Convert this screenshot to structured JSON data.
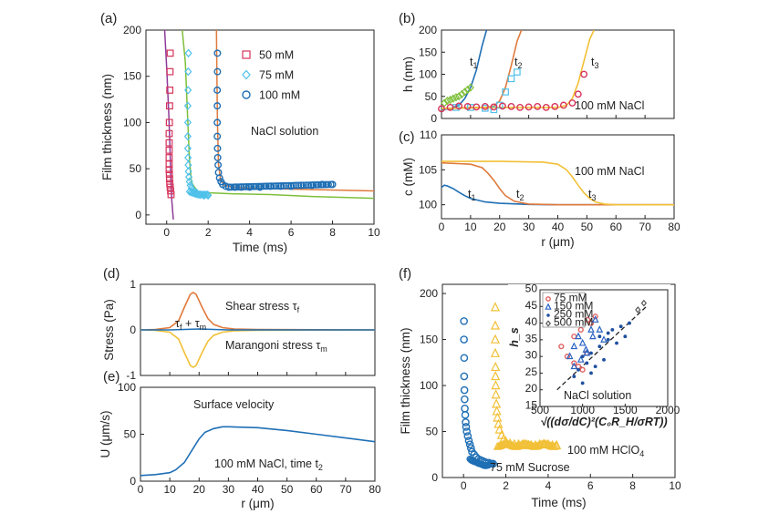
{
  "figure": {
    "panel_labels": [
      "(a)",
      "(b)",
      "(c)",
      "(d)",
      "(e)",
      "(f)"
    ]
  },
  "colors": {
    "red": "#d6335a",
    "cyan": "#4fc1ea",
    "blue": "#1f6fb5",
    "purple": "#8e3b9a",
    "green": "#7dbf3a",
    "orange": "#e07a3c",
    "yellow": "#f2c037",
    "darkblue": "#2f6fb8",
    "inset_red": "#e06060",
    "inset_blue": "#2b63c4",
    "inset_navy": "#1f4f9e",
    "inset_gray": "#555555"
  },
  "chart_data": [
    {
      "id": "a",
      "type": "scatter",
      "xlabel": "Time (ms)",
      "ylabel": "Film thickness (nm)",
      "xlim": [
        -1,
        10
      ],
      "ylim": [
        -10,
        200
      ],
      "xticks": [
        0,
        2,
        4,
        6,
        8,
        10
      ],
      "yticks": [
        0,
        50,
        100,
        150,
        200
      ],
      "annotations": [
        "NaCl solution"
      ],
      "legend": [
        "50 mM",
        "75 mM",
        "100 mM"
      ],
      "series": [
        {
          "name": "50 mM",
          "marker": "square",
          "color": "red",
          "x": [
            0.17,
            0.16,
            0.15,
            0.14,
            0.13,
            0.12,
            0.12,
            0.12,
            0.12,
            0.12,
            0.12,
            0.13,
            0.14,
            0.15,
            0.17,
            0.19,
            0.21
          ],
          "y": [
            175,
            155,
            135,
            118,
            100,
            88,
            78,
            70,
            62,
            55,
            49,
            44,
            39,
            34,
            30,
            26,
            22
          ]
        },
        {
          "name": "75 mM",
          "marker": "diamond",
          "color": "cyan",
          "x": [
            1.05,
            1.04,
            1.03,
            1.02,
            1.02,
            1.02,
            1.02,
            1.03,
            1.04,
            1.05,
            1.07,
            1.1,
            1.14,
            1.2,
            1.3,
            1.45,
            1.6,
            1.8,
            2.0
          ],
          "y": [
            175,
            155,
            135,
            118,
            100,
            85,
            72,
            62,
            54,
            47,
            41,
            36,
            32,
            29,
            26,
            24,
            22,
            21,
            21
          ]
        },
        {
          "name": "100 mM",
          "marker": "circle",
          "color": "blue",
          "x": [
            2.45,
            2.45,
            2.44,
            2.44,
            2.44,
            2.44,
            2.45,
            2.46,
            2.48,
            2.5,
            2.55,
            2.62,
            2.7,
            2.85,
            3.0,
            3.3,
            3.6,
            4.0,
            4.5,
            5.0,
            5.5,
            6.0,
            6.5,
            7.0,
            7.5,
            8.0
          ],
          "y": [
            175,
            155,
            135,
            118,
            100,
            85,
            72,
            62,
            54,
            46,
            40,
            36,
            33,
            31,
            30,
            30,
            30,
            30,
            30,
            31,
            31,
            31,
            32,
            32,
            33,
            33
          ]
        }
      ],
      "fit_lines": [
        {
          "color": "purple",
          "x": [
            -0.1,
            0.0,
            0.1,
            0.15,
            0.2,
            0.25,
            0.32
          ],
          "y": [
            200,
            160,
            110,
            80,
            40,
            15,
            -5
          ]
        },
        {
          "color": "green",
          "x": [
            0.75,
            0.9,
            1.0,
            1.1,
            1.2,
            1.5,
            2.0,
            3.0,
            5.0,
            7.0,
            10.0
          ],
          "y": [
            200,
            165,
            110,
            60,
            35,
            25,
            24,
            23,
            22,
            20,
            18
          ]
        },
        {
          "color": "orange",
          "x": [
            2.4,
            2.42,
            2.45,
            2.5,
            2.6,
            2.8,
            3.2,
            4.0,
            6.0,
            8.0,
            10.0
          ],
          "y": [
            200,
            160,
            100,
            55,
            38,
            32,
            30,
            29,
            28,
            27,
            26
          ]
        }
      ]
    },
    {
      "id": "b",
      "type": "line",
      "xlabel": "",
      "ylabel": "h (nm)",
      "xlim": [
        0,
        80
      ],
      "ylim": [
        0,
        200
      ],
      "yticks": [
        0,
        50,
        100,
        150,
        200
      ],
      "annotations": [
        "100 mM NaCl"
      ],
      "time_labels": [
        "t",
        "1",
        "t",
        "2",
        "t",
        "3"
      ],
      "lines": [
        {
          "color": "blue",
          "x": [
            0,
            3,
            6,
            8,
            10,
            12,
            14,
            15.5
          ],
          "y": [
            20,
            22,
            30,
            45,
            70,
            110,
            165,
            200
          ]
        },
        {
          "color": "orange",
          "x": [
            0,
            5,
            10,
            15,
            18,
            20,
            22,
            24,
            26,
            27.5
          ],
          "y": [
            22,
            24,
            25,
            25,
            28,
            40,
            70,
            120,
            175,
            200
          ]
        },
        {
          "color": "yellow",
          "x": [
            0,
            10,
            20,
            30,
            40,
            43,
            45,
            47,
            49,
            51,
            52.5
          ],
          "y": [
            22,
            24,
            25,
            25,
            25,
            30,
            45,
            80,
            130,
            180,
            200
          ]
        }
      ],
      "points": [
        {
          "color": "green",
          "marker": "diamond",
          "x": [
            1,
            2,
            3,
            4,
            5,
            6,
            7,
            8,
            9,
            10
          ],
          "y": [
            35,
            40,
            42,
            45,
            48,
            50,
            55,
            60,
            65,
            70
          ]
        },
        {
          "color": "cyan",
          "marker": "square",
          "x": [
            5,
            10,
            15,
            18,
            20,
            22,
            24,
            26
          ],
          "y": [
            25,
            25,
            23,
            20,
            30,
            60,
            90,
            105
          ]
        },
        {
          "color": "red",
          "marker": "circle",
          "x": [
            0,
            3,
            6,
            9,
            12,
            15,
            18,
            21,
            24,
            27,
            30,
            33,
            36,
            39,
            42,
            45,
            47,
            49
          ],
          "y": [
            22,
            25,
            28,
            27,
            26,
            27,
            26,
            28,
            27,
            25,
            26,
            27,
            25,
            27,
            30,
            35,
            55,
            100
          ]
        }
      ]
    },
    {
      "id": "c",
      "type": "line",
      "xlabel": "r (μm)",
      "ylabel": "c (mM)",
      "xlim": [
        0,
        80
      ],
      "ylim": [
        98,
        110
      ],
      "xticks": [
        0,
        10,
        20,
        30,
        40,
        50,
        60,
        70,
        80
      ],
      "yticks": [
        100,
        105,
        110
      ],
      "annotations": [
        "100 mM NaCl"
      ],
      "time_labels": [
        "t",
        "1",
        "t",
        "2",
        "t",
        "3"
      ],
      "lines": [
        {
          "color": "blue",
          "x": [
            0,
            1,
            2,
            4,
            6,
            8,
            10,
            15,
            20,
            30,
            40,
            80
          ],
          "y": [
            102.5,
            102.8,
            102.7,
            102.3,
            101.8,
            101.3,
            100.9,
            100.4,
            100.2,
            100.05,
            100.0,
            100.0
          ]
        },
        {
          "color": "orange",
          "x": [
            0,
            10,
            14,
            16,
            18,
            20,
            22,
            25,
            30,
            40,
            80
          ],
          "y": [
            106.0,
            105.8,
            105.3,
            104.5,
            103.5,
            102.3,
            101.3,
            100.5,
            100.1,
            100.0,
            100.0
          ]
        },
        {
          "color": "yellow",
          "x": [
            0,
            20,
            35,
            40,
            43,
            45,
            47,
            49,
            51,
            53,
            56,
            60,
            80
          ],
          "y": [
            106.2,
            106.2,
            106.1,
            105.8,
            105.0,
            104.0,
            102.8,
            101.7,
            100.9,
            100.4,
            100.1,
            100.0,
            100.0
          ]
        }
      ]
    },
    {
      "id": "d",
      "type": "line",
      "xlabel": "",
      "ylabel": "Stress (Pa)",
      "xlim": [
        0,
        80
      ],
      "ylim": [
        -1,
        1
      ],
      "yticks": [
        -1,
        0,
        1
      ],
      "annotations": [
        "Shear stress τ",
        "f",
        "Marangoni stress τ",
        "m",
        "τ",
        "f",
        " + τ",
        "m"
      ],
      "lines": [
        {
          "color": "orange",
          "x": [
            0,
            5,
            10,
            13,
            15,
            17,
            18,
            19,
            21,
            23,
            25,
            28,
            32,
            40,
            80
          ],
          "y": [
            0.0,
            0.01,
            0.05,
            0.2,
            0.5,
            0.78,
            0.82,
            0.78,
            0.5,
            0.25,
            0.12,
            0.05,
            0.02,
            0.01,
            0.0
          ]
        },
        {
          "color": "yellow",
          "x": [
            0,
            5,
            10,
            13,
            15,
            17,
            18,
            19,
            21,
            23,
            25,
            28,
            32,
            40,
            80
          ],
          "y": [
            0.0,
            -0.01,
            -0.05,
            -0.2,
            -0.5,
            -0.78,
            -0.82,
            -0.78,
            -0.5,
            -0.25,
            -0.12,
            -0.05,
            -0.02,
            -0.01,
            0.0
          ]
        },
        {
          "color": "blue",
          "x": [
            0,
            10,
            15,
            20,
            25,
            30,
            40,
            80
          ],
          "y": [
            0.0,
            0.0,
            0.01,
            0.02,
            0.01,
            0.0,
            0.0,
            0.0
          ]
        }
      ]
    },
    {
      "id": "e",
      "type": "line",
      "xlabel": "r (μm)",
      "ylabel": "U (μm/s)",
      "xlim": [
        0,
        80
      ],
      "ylim": [
        0,
        100
      ],
      "xticks": [
        0,
        10,
        20,
        30,
        40,
        50,
        60,
        70,
        80
      ],
      "yticks": [
        0,
        50,
        100
      ],
      "annotations": [
        "Surface velocity",
        "100 mM NaCl, time t",
        "2"
      ],
      "lines": [
        {
          "color": "blue",
          "x": [
            0,
            5,
            10,
            12,
            15,
            18,
            20,
            22,
            25,
            28,
            30,
            40,
            50,
            60,
            70,
            80
          ],
          "y": [
            6,
            7,
            9,
            12,
            20,
            35,
            45,
            52,
            56,
            58,
            58,
            57,
            54,
            50,
            46,
            42
          ]
        }
      ]
    },
    {
      "id": "f",
      "type": "scatter",
      "xlabel": "Time (ms)",
      "ylabel": "Film thickness (nm)",
      "xlim": [
        -1,
        10
      ],
      "ylim": [
        0,
        210
      ],
      "xticks": [
        0,
        2,
        4,
        6,
        8,
        10
      ],
      "yticks": [
        0,
        50,
        100,
        150,
        200
      ],
      "annotations": [
        "100 mM HClO",
        "4",
        "75 mM Sucrose"
      ],
      "series": [
        {
          "name": "75 mM Sucrose",
          "marker": "circle",
          "color": "blue",
          "x": [
            0.02,
            0.02,
            0.03,
            0.03,
            0.04,
            0.05,
            0.06,
            0.08,
            0.1,
            0.12,
            0.15,
            0.2,
            0.25,
            0.3,
            0.35,
            0.4,
            0.5,
            0.6,
            0.7,
            0.8,
            0.9,
            1.0,
            1.1,
            1.2,
            1.3,
            1.4
          ],
          "y": [
            170,
            150,
            130,
            110,
            95,
            85,
            75,
            68,
            60,
            55,
            50,
            45,
            40,
            36,
            32,
            28,
            25,
            22,
            20,
            19,
            18,
            17,
            16,
            16,
            15,
            15
          ]
        },
        {
          "name": "100 mM HClO4",
          "marker": "triangle",
          "color": "yellow",
          "x": [
            1.5,
            1.5,
            1.5,
            1.5,
            1.51,
            1.51,
            1.52,
            1.53,
            1.55,
            1.57,
            1.6,
            1.65,
            1.7,
            1.8,
            1.9,
            2.0,
            2.2,
            2.4,
            2.6,
            2.8,
            3.0,
            3.2,
            3.4,
            3.6,
            3.8,
            4.0,
            4.2,
            4.4
          ],
          "y": [
            185,
            165,
            150,
            135,
            120,
            110,
            100,
            90,
            80,
            72,
            65,
            58,
            52,
            46,
            42,
            39,
            37,
            36,
            36,
            36,
            35,
            35,
            35,
            36,
            36,
            36,
            35,
            35
          ]
        }
      ],
      "inset": {
        "type": "scatter",
        "xlabel": "√((dσ/dC)²(C₀R_H/σRT))",
        "ylabel": "h_s",
        "xlim": [
          500,
          2000
        ],
        "ylim": [
          15,
          50
        ],
        "xticks": [
          500,
          1000,
          1500,
          2000
        ],
        "yticks": [
          15,
          20,
          25,
          30,
          35,
          40,
          45,
          50
        ],
        "annotations": [
          "NaCl solution"
        ],
        "legend": [
          "75 mM",
          "150 mM",
          "250 mM",
          "500 mM"
        ],
        "series": [
          {
            "name": "75 mM",
            "marker": "circle",
            "color": "inset_red",
            "x": [
              700,
              750,
              820,
              900,
              950,
              1000,
              1050,
              1100,
              1150,
              900,
              980,
              1060
            ],
            "y": [
              41,
              33,
              30,
              28,
              27,
              26,
              31,
              40,
              42,
              36,
              38,
              41
            ]
          },
          {
            "name": "150 mM",
            "marker": "triangle",
            "color": "inset_blue",
            "x": [
              850,
              900,
              950,
              1000,
              1050,
              1100,
              1150,
              1200,
              1250,
              900,
              980,
              1040,
              1120
            ],
            "y": [
              30,
              33,
              36,
              34,
              31,
              38,
              41,
              38,
              35,
              27,
              29,
              32,
              36
            ]
          },
          {
            "name": "250 mM",
            "marker": "star",
            "color": "inset_navy",
            "x": [
              900,
              950,
              1000,
              1050,
              1100,
              1150,
              1200,
              1250,
              1300,
              1350,
              1400,
              1450,
              1500,
              1550,
              1000,
              1100,
              1200,
              1300
            ],
            "y": [
              24,
              26,
              22,
              28,
              25,
              27,
              33,
              29,
              35,
              38,
              34,
              39,
              36,
              40,
              30,
              31,
              36,
              37
            ]
          },
          {
            "name": "500 mM",
            "marker": "diamond",
            "color": "inset_gray",
            "x": [
              1650,
              1720
            ],
            "y": [
              44,
              46
            ]
          }
        ],
        "fit_line": {
          "x": [
            700,
            1750
          ],
          "y": [
            20,
            45
          ]
        }
      }
    }
  ]
}
